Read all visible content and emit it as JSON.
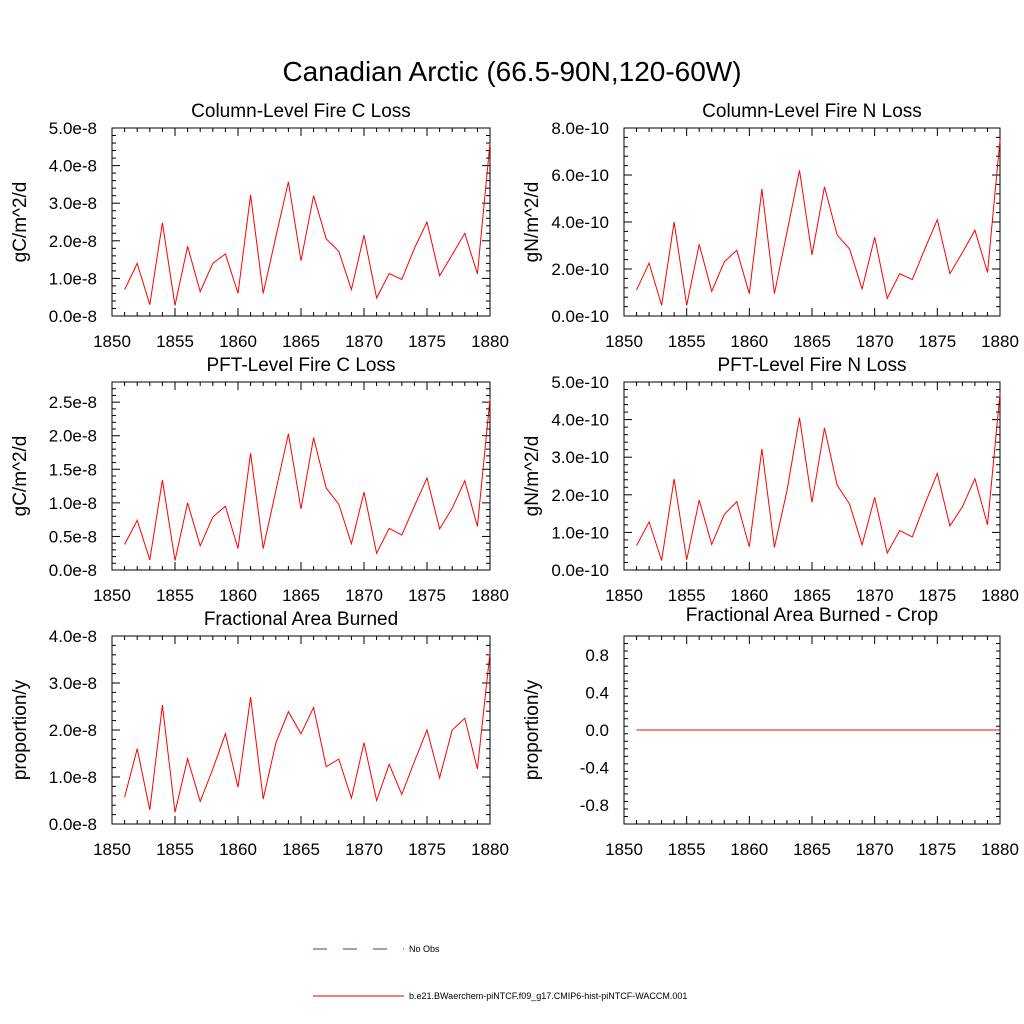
{
  "figure": {
    "title": "Canadian Arctic (66.5-90N,120-60W)"
  },
  "legend": {
    "items": [
      {
        "label": "No Obs",
        "color": "#3b3bb5",
        "dash": true
      },
      {
        "label": "b.e21.BWaerchem-piNTCF.f09_g17.CMIP6-hist-piNTCF-WACCM.001",
        "color": "#e00000",
        "dash": false
      }
    ]
  },
  "colors": {
    "series": "#ff0000",
    "axis": "#000000"
  },
  "chart_data": [
    {
      "type": "line",
      "title": "Column-Level Fire C Loss",
      "ylabel": "gC/m^2/d",
      "xlim": [
        1850,
        1880
      ],
      "ylim": [
        0,
        5e-08
      ],
      "xticks": [
        1850,
        1855,
        1860,
        1865,
        1870,
        1875,
        1880
      ],
      "yticks": [
        0,
        1e-08,
        2e-08,
        3e-08,
        4e-08,
        5e-08
      ],
      "yticklabels": [
        "0.0e-8",
        "1.0e-8",
        "2.0e-8",
        "3.0e-8",
        "4.0e-8",
        "5.0e-8"
      ],
      "x": [
        1851,
        1852,
        1853,
        1854,
        1855,
        1856,
        1857,
        1858,
        1859,
        1860,
        1861,
        1862,
        1863,
        1864,
        1865,
        1866,
        1867,
        1868,
        1869,
        1870,
        1871,
        1872,
        1873,
        1874,
        1875,
        1876,
        1877,
        1878,
        1879,
        1880
      ],
      "values": [
        7e-09,
        1.4e-08,
        3e-09,
        2.48e-08,
        2.8e-09,
        1.85e-08,
        6.5e-09,
        1.4e-08,
        1.65e-08,
        6e-09,
        3.22e-08,
        6e-09,
        2.1e-08,
        3.57e-08,
        1.47e-08,
        3.2e-08,
        2.05e-08,
        1.72e-08,
        7e-09,
        2.15e-08,
        4.8e-09,
        1.13e-08,
        9.7e-09,
        1.8e-08,
        2.5e-08,
        1.07e-08,
        1.63e-08,
        2.2e-08,
        1.12e-08,
        4.6e-08
      ]
    },
    {
      "type": "line",
      "title": "Column-Level Fire N Loss",
      "ylabel": "gN/m^2/d",
      "xlim": [
        1850,
        1880
      ],
      "ylim": [
        0,
        8e-10
      ],
      "xticks": [
        1850,
        1855,
        1860,
        1865,
        1870,
        1875,
        1880
      ],
      "yticks": [
        0,
        2e-10,
        4e-10,
        6e-10,
        8e-10
      ],
      "yticklabels": [
        "0.0e-10",
        "2.0e-10",
        "4.0e-10",
        "6.0e-10",
        "8.0e-10"
      ],
      "x": [
        1851,
        1852,
        1853,
        1854,
        1855,
        1856,
        1857,
        1858,
        1859,
        1860,
        1861,
        1862,
        1863,
        1864,
        1865,
        1866,
        1867,
        1868,
        1869,
        1870,
        1871,
        1872,
        1873,
        1874,
        1875,
        1876,
        1877,
        1878,
        1879,
        1880
      ],
      "values": [
        1.1e-10,
        2.25e-10,
        4.5e-11,
        4e-10,
        4.5e-11,
        3.05e-10,
        1.05e-10,
        2.3e-10,
        2.8e-10,
        9.5e-11,
        5.4e-10,
        9.5e-11,
        3.55e-10,
        6.2e-10,
        2.6e-10,
        5.5e-10,
        3.45e-10,
        2.85e-10,
        1.15e-10,
        3.35e-10,
        7.5e-11,
        1.8e-10,
        1.55e-10,
        2.85e-10,
        4.1e-10,
        1.8e-10,
        2.7e-10,
        3.65e-10,
        1.85e-10,
        7.5e-10
      ]
    },
    {
      "type": "line",
      "title": "PFT-Level Fire C Loss",
      "ylabel": "gC/m^2/d",
      "xlim": [
        1850,
        1880
      ],
      "ylim": [
        0,
        2.8e-08
      ],
      "xticks": [
        1850,
        1855,
        1860,
        1865,
        1870,
        1875,
        1880
      ],
      "yticks": [
        0,
        5e-09,
        1e-08,
        1.5e-08,
        2e-08,
        2.5e-08
      ],
      "yticklabels": [
        "0.0e-8",
        "0.5e-8",
        "1.0e-8",
        "1.5e-8",
        "2.0e-8",
        "2.5e-8"
      ],
      "x": [
        1851,
        1852,
        1853,
        1854,
        1855,
        1856,
        1857,
        1858,
        1859,
        1860,
        1861,
        1862,
        1863,
        1864,
        1865,
        1866,
        1867,
        1868,
        1869,
        1870,
        1871,
        1872,
        1873,
        1874,
        1875,
        1876,
        1877,
        1878,
        1879,
        1880
      ],
      "values": [
        3.8e-09,
        7.4e-09,
        1.5e-09,
        1.34e-08,
        1.4e-09,
        1e-08,
        3.6e-09,
        7.9e-09,
        9.5e-09,
        3.2e-09,
        1.74e-08,
        3.2e-09,
        1.18e-08,
        2.03e-08,
        9.1e-09,
        1.97e-08,
        1.22e-08,
        9.8e-09,
        3.9e-09,
        1.16e-08,
        2.5e-09,
        6.2e-09,
        5.2e-09,
        9.5e-09,
        1.37e-08,
        6.1e-09,
        9.2e-09,
        1.33e-08,
        6.5e-09,
        2.55e-08
      ]
    },
    {
      "type": "line",
      "title": "PFT-Level Fire N Loss",
      "ylabel": "gN/m^2/d",
      "xlim": [
        1850,
        1880
      ],
      "ylim": [
        0,
        5e-10
      ],
      "xticks": [
        1850,
        1855,
        1860,
        1865,
        1870,
        1875,
        1880
      ],
      "yticks": [
        0,
        1e-10,
        2e-10,
        3e-10,
        4e-10,
        5e-10
      ],
      "yticklabels": [
        "0.0e-10",
        "1.0e-10",
        "2.0e-10",
        "3.0e-10",
        "4.0e-10",
        "5.0e-10"
      ],
      "x": [
        1851,
        1852,
        1853,
        1854,
        1855,
        1856,
        1857,
        1858,
        1859,
        1860,
        1861,
        1862,
        1863,
        1864,
        1865,
        1866,
        1867,
        1868,
        1869,
        1870,
        1871,
        1872,
        1873,
        1874,
        1875,
        1876,
        1877,
        1878,
        1879,
        1880
      ],
      "values": [
        6.5e-11,
        1.28e-10,
        2.5e-11,
        2.42e-10,
        2.7e-11,
        1.86e-10,
        6.8e-11,
        1.48e-10,
        1.82e-10,
        6.2e-11,
        3.22e-10,
        6e-11,
        2.1e-10,
        4.05e-10,
        1.8e-10,
        3.78e-10,
        2.26e-10,
        1.75e-10,
        6.7e-11,
        1.93e-10,
        4.5e-11,
        1.05e-10,
        8.8e-11,
        1.75e-10,
        2.57e-10,
        1.17e-10,
        1.68e-10,
        2.43e-10,
        1.2e-10,
        4.7e-10
      ]
    },
    {
      "type": "line",
      "title": "Fractional Area Burned",
      "ylabel": "proportion/y",
      "xlim": [
        1850,
        1880
      ],
      "ylim": [
        0,
        4e-08
      ],
      "xticks": [
        1850,
        1855,
        1860,
        1865,
        1870,
        1875,
        1880
      ],
      "yticks": [
        0,
        1e-08,
        2e-08,
        3e-08,
        4e-08
      ],
      "yticklabels": [
        "0.0e-8",
        "1.0e-8",
        "2.0e-8",
        "3.0e-8",
        "4.0e-8"
      ],
      "x": [
        1851,
        1852,
        1853,
        1854,
        1855,
        1856,
        1857,
        1858,
        1859,
        1860,
        1861,
        1862,
        1863,
        1864,
        1865,
        1866,
        1867,
        1868,
        1869,
        1870,
        1871,
        1872,
        1873,
        1874,
        1875,
        1876,
        1877,
        1878,
        1879,
        1880
      ],
      "values": [
        5.7e-09,
        1.6e-08,
        3e-09,
        2.53e-08,
        2.5e-09,
        1.39e-08,
        4.8e-09,
        1.17e-08,
        1.92e-08,
        7.8e-09,
        2.7e-08,
        5.3e-09,
        1.72e-08,
        2.39e-08,
        1.92e-08,
        2.48e-08,
        1.22e-08,
        1.38e-08,
        5.5e-09,
        1.73e-08,
        5e-09,
        1.27e-08,
        6.3e-09,
        1.33e-08,
        2e-08,
        9.8e-09,
        2e-08,
        2.25e-08,
        1.17e-08,
        3.65e-08
      ]
    },
    {
      "type": "line",
      "title": "Fractional Area Burned - Crop",
      "ylabel": "proportion/y",
      "xlim": [
        1850,
        1880
      ],
      "ylim": [
        -1.0,
        1.0
      ],
      "xticks": [
        1850,
        1855,
        1860,
        1865,
        1870,
        1875,
        1880
      ],
      "yticks": [
        -0.8,
        -0.4,
        0.0,
        0.4,
        0.8
      ],
      "yticklabels": [
        "-0.8",
        "-0.4",
        "0.0",
        "0.4",
        "0.8"
      ],
      "x": [
        1851,
        1880
      ],
      "values": [
        0,
        0
      ]
    }
  ]
}
